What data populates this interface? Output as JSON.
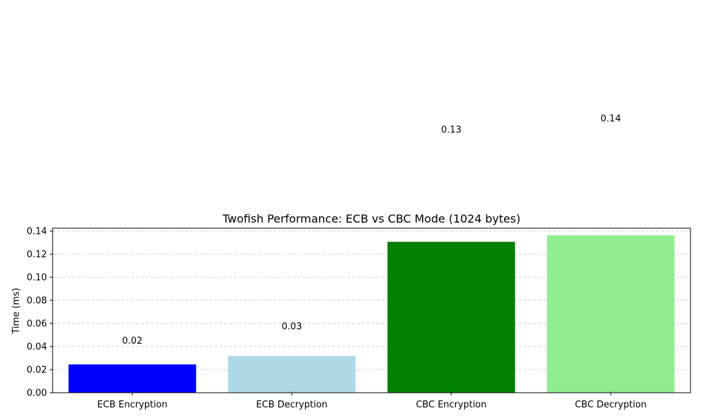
{
  "chart_data": {
    "type": "bar",
    "title": "Twofish Performance: ECB vs CBC Mode (1024 bytes)",
    "xlabel": "",
    "ylabel": "Time (ms)",
    "categories": [
      "ECB Encryption",
      "ECB Decryption",
      "CBC Encryption",
      "CBC Decryption"
    ],
    "values": [
      0.0245,
      0.0318,
      0.1307,
      0.1363
    ],
    "value_labels": [
      "0.02",
      "0.03",
      "0.13",
      "0.14"
    ],
    "colors": [
      "#0000ff",
      "#add8e6",
      "#008000",
      "#90ee90"
    ],
    "ylim": [
      0,
      0.1425
    ],
    "yticks": [
      0,
      0.02,
      0.04,
      0.06,
      0.08,
      0.1,
      0.12,
      0.14
    ],
    "ytick_labels": [
      "0.00",
      "0.02",
      "0.04",
      "0.06",
      "0.08",
      "0.10",
      "0.12",
      "0.14"
    ],
    "grid": "y-dashed",
    "legend": "none"
  }
}
